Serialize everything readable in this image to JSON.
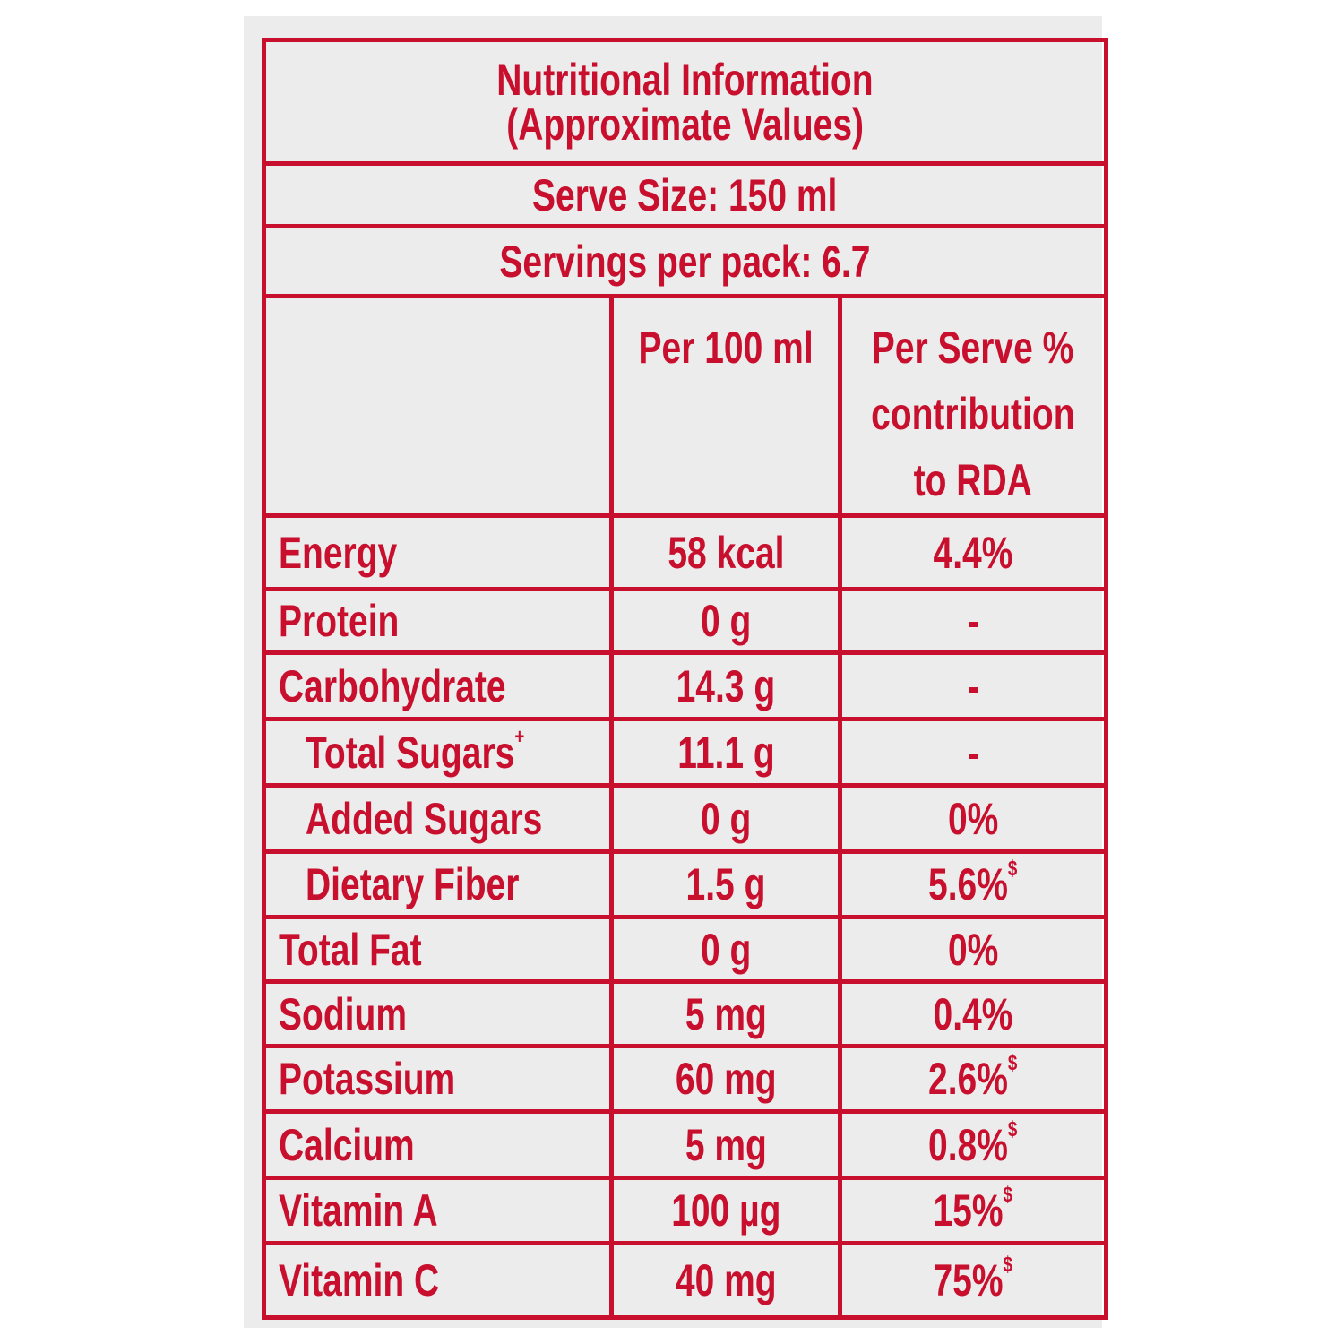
{
  "colors": {
    "accent": "#c8102e",
    "background": "#ececec"
  },
  "title_line1": "Nutritional Information",
  "title_line2": "(Approximate Values)",
  "serve_size": "Serve Size: 150 ml",
  "servings": "Servings per pack: 6.7",
  "columns": {
    "per100": "Per 100 ml",
    "rda_line1": "Per Serve %",
    "rda_line2": "contribution",
    "rda_line3": "to RDA"
  },
  "rows": [
    {
      "name": "Energy",
      "per100": "58 kcal",
      "rda": "4.4%",
      "sup": "",
      "indent": false
    },
    {
      "name": "Protein",
      "per100": "0 g",
      "rda": "-",
      "sup": "",
      "indent": false
    },
    {
      "name": "Carbohydrate",
      "per100": "14.3 g",
      "rda": "-",
      "sup": "",
      "indent": false
    },
    {
      "name": "Total Sugars",
      "name_sup": "+",
      "per100": "11.1 g",
      "rda": "-",
      "sup": "",
      "indent": true
    },
    {
      "name": "Added Sugars",
      "per100": "0 g",
      "rda": "0%",
      "sup": "",
      "indent": true
    },
    {
      "name": "Dietary Fiber",
      "per100": "1.5 g",
      "rda": "5.6%",
      "sup": "$",
      "indent": true
    },
    {
      "name": "Total Fat",
      "per100": "0 g",
      "rda": "0%",
      "sup": "",
      "indent": false
    },
    {
      "name": "Sodium",
      "per100": "5 mg",
      "rda": "0.4%",
      "sup": "",
      "indent": false
    },
    {
      "name": "Potassium",
      "per100": "60 mg",
      "rda": "2.6%",
      "sup": "$",
      "indent": false
    },
    {
      "name": "Calcium",
      "per100": "5 mg",
      "rda": "0.8%",
      "sup": "$",
      "indent": false
    },
    {
      "name": "Vitamin A",
      "per100": "100 µg",
      "rda": "15%",
      "sup": "$",
      "indent": false
    },
    {
      "name": "Vitamin C",
      "per100": "40 mg",
      "rda": "75%",
      "sup": "$",
      "indent": false
    }
  ]
}
